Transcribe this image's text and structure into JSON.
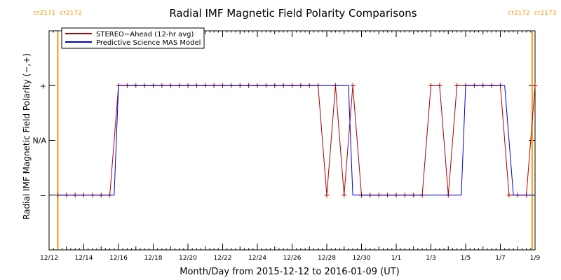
{
  "chart_data": {
    "type": "line",
    "title": "Radial IMF Magnetic Field Polarity Comparisons",
    "xlabel": "Month/Day from 2015-12-12 to 2016-01-09 (UT)",
    "ylabel": "Radial IMF Magnetic Field Polarity (−,+)",
    "x_unit": "date (UT)",
    "xlim": [
      "2015-12-12",
      "2016-01-09"
    ],
    "x_ticks": [
      {
        "label": "12/12",
        "date": "2015-12-12"
      },
      {
        "label": "12/14",
        "date": "2015-12-14"
      },
      {
        "label": "12/16",
        "date": "2015-12-16"
      },
      {
        "label": "12/18",
        "date": "2015-12-18"
      },
      {
        "label": "12/20",
        "date": "2015-12-20"
      },
      {
        "label": "12/22",
        "date": "2015-12-22"
      },
      {
        "label": "12/24",
        "date": "2015-12-24"
      },
      {
        "label": "12/26",
        "date": "2015-12-26"
      },
      {
        "label": "12/28",
        "date": "2015-12-28"
      },
      {
        "label": "12/30",
        "date": "2015-12-30"
      },
      {
        "label": "1/1",
        "date": "2016-01-01"
      },
      {
        "label": "1/3",
        "date": "2016-01-03"
      },
      {
        "label": "1/5",
        "date": "2016-01-05"
      },
      {
        "label": "1/7",
        "date": "2016-01-07"
      },
      {
        "label": "1/9",
        "date": "2016-01-09"
      }
    ],
    "y_categories": [
      {
        "label": "−",
        "value": -1
      },
      {
        "label": "N/A",
        "value": 0
      },
      {
        "label": "+",
        "value": 1
      }
    ],
    "ylim": [
      -2,
      2
    ],
    "legend": {
      "placement": "top-left"
    },
    "carrington_markers": [
      {
        "date": "2015-12-12T12:00",
        "left_label": "cr2171",
        "right_label": "cr2172"
      },
      {
        "date": "2016-01-08T20:00",
        "left_label": "cr2172",
        "right_label": "cr2173"
      }
    ],
    "series": [
      {
        "name": "STEREO−Ahead (12-hr avg)",
        "color": "#aa0000",
        "markers": true,
        "points": [
          [
            "2015-12-12T12:00",
            -1
          ],
          [
            "2015-12-13T00:00",
            -1
          ],
          [
            "2015-12-13T12:00",
            -1
          ],
          [
            "2015-12-14T00:00",
            -1
          ],
          [
            "2015-12-14T12:00",
            -1
          ],
          [
            "2015-12-15T00:00",
            -1
          ],
          [
            "2015-12-15T12:00",
            -1
          ],
          [
            "2015-12-16T00:00",
            1
          ],
          [
            "2015-12-16T12:00",
            1
          ],
          [
            "2015-12-17T00:00",
            1
          ],
          [
            "2015-12-17T12:00",
            1
          ],
          [
            "2015-12-18T00:00",
            1
          ],
          [
            "2015-12-18T12:00",
            1
          ],
          [
            "2015-12-19T00:00",
            1
          ],
          [
            "2015-12-19T12:00",
            1
          ],
          [
            "2015-12-20T00:00",
            1
          ],
          [
            "2015-12-20T12:00",
            1
          ],
          [
            "2015-12-21T00:00",
            1
          ],
          [
            "2015-12-21T12:00",
            1
          ],
          [
            "2015-12-22T00:00",
            1
          ],
          [
            "2015-12-22T12:00",
            1
          ],
          [
            "2015-12-23T00:00",
            1
          ],
          [
            "2015-12-23T12:00",
            1
          ],
          [
            "2015-12-24T00:00",
            1
          ],
          [
            "2015-12-24T12:00",
            1
          ],
          [
            "2015-12-25T00:00",
            1
          ],
          [
            "2015-12-25T12:00",
            1
          ],
          [
            "2015-12-26T00:00",
            1
          ],
          [
            "2015-12-26T12:00",
            1
          ],
          [
            "2015-12-27T00:00",
            1
          ],
          [
            "2015-12-27T12:00",
            1
          ],
          [
            "2015-12-28T00:00",
            -1
          ],
          [
            "2015-12-28T12:00",
            1
          ],
          [
            "2015-12-29T00:00",
            -1
          ],
          [
            "2015-12-29T12:00",
            1
          ],
          [
            "2015-12-30T00:00",
            -1
          ],
          [
            "2015-12-30T12:00",
            -1
          ],
          [
            "2015-12-31T00:00",
            -1
          ],
          [
            "2015-12-31T12:00",
            -1
          ],
          [
            "2016-01-01T00:00",
            -1
          ],
          [
            "2016-01-01T12:00",
            -1
          ],
          [
            "2016-01-02T00:00",
            -1
          ],
          [
            "2016-01-02T12:00",
            -1
          ],
          [
            "2016-01-03T00:00",
            1
          ],
          [
            "2016-01-03T12:00",
            1
          ],
          [
            "2016-01-04T00:00",
            -1
          ],
          [
            "2016-01-04T12:00",
            1
          ],
          [
            "2016-01-05T00:00",
            1
          ],
          [
            "2016-01-05T12:00",
            1
          ],
          [
            "2016-01-06T00:00",
            1
          ],
          [
            "2016-01-06T12:00",
            1
          ],
          [
            "2016-01-07T00:00",
            1
          ],
          [
            "2016-01-07T12:00",
            -1
          ],
          [
            "2016-01-08T00:00",
            -1
          ],
          [
            "2016-01-08T12:00",
            -1
          ],
          [
            "2016-01-09T00:00",
            1
          ]
        ]
      },
      {
        "name": "Predictive Science MAS Model",
        "color": "#0000cc",
        "markers": false,
        "points": [
          [
            "2015-12-12T12:00",
            -1
          ],
          [
            "2015-12-15T18:00",
            -1
          ],
          [
            "2015-12-16T00:00",
            1
          ],
          [
            "2015-12-29T06:00",
            1
          ],
          [
            "2015-12-29T12:00",
            -1
          ],
          [
            "2016-01-04T18:00",
            -1
          ],
          [
            "2016-01-05T00:00",
            1
          ],
          [
            "2016-01-07T06:00",
            1
          ],
          [
            "2016-01-07T18:00",
            -1
          ],
          [
            "2016-01-09T00:00",
            -1
          ]
        ]
      }
    ]
  }
}
